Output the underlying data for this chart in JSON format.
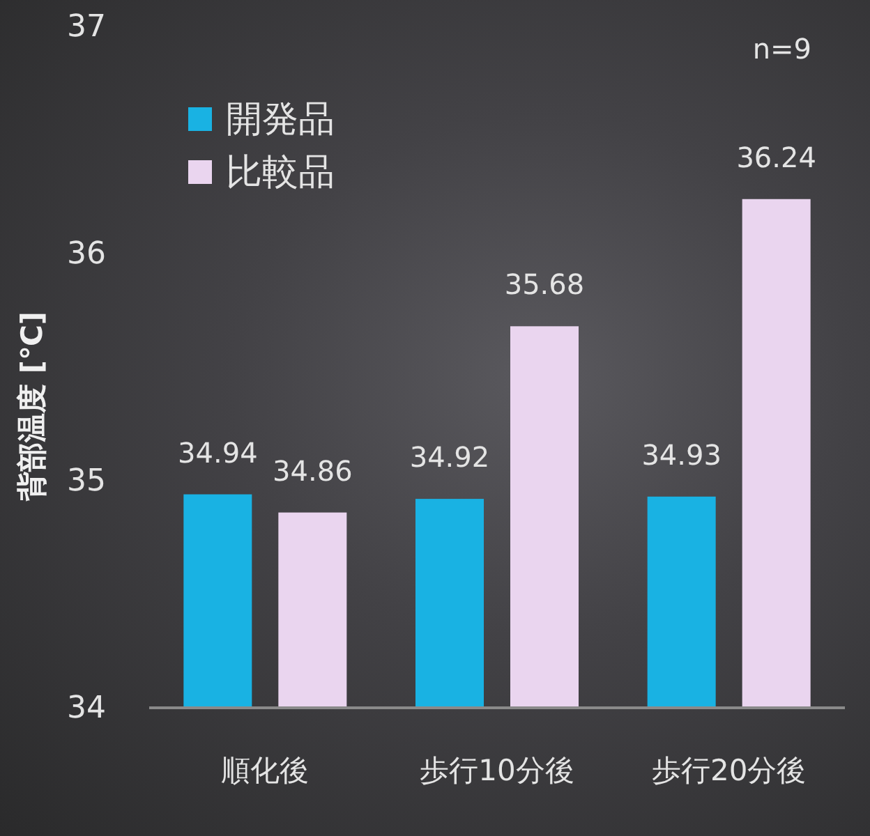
{
  "chart_data": {
    "type": "bar",
    "ylabel": "背部温度 [℃]",
    "categories": [
      "順化後",
      "歩行10分後",
      "歩行20分後"
    ],
    "series": [
      {
        "name": "開発品",
        "color": "#19b2e3",
        "values": [
          34.94,
          34.92,
          34.93
        ]
      },
      {
        "name": "比較品",
        "color": "#ead5ef",
        "values": [
          34.86,
          35.68,
          36.24
        ]
      }
    ],
    "ylim": [
      34,
      37
    ],
    "yticks": [
      34,
      35,
      36,
      37
    ],
    "data_labels": true,
    "legend": "top left",
    "annotations": [
      "n=9"
    ]
  }
}
